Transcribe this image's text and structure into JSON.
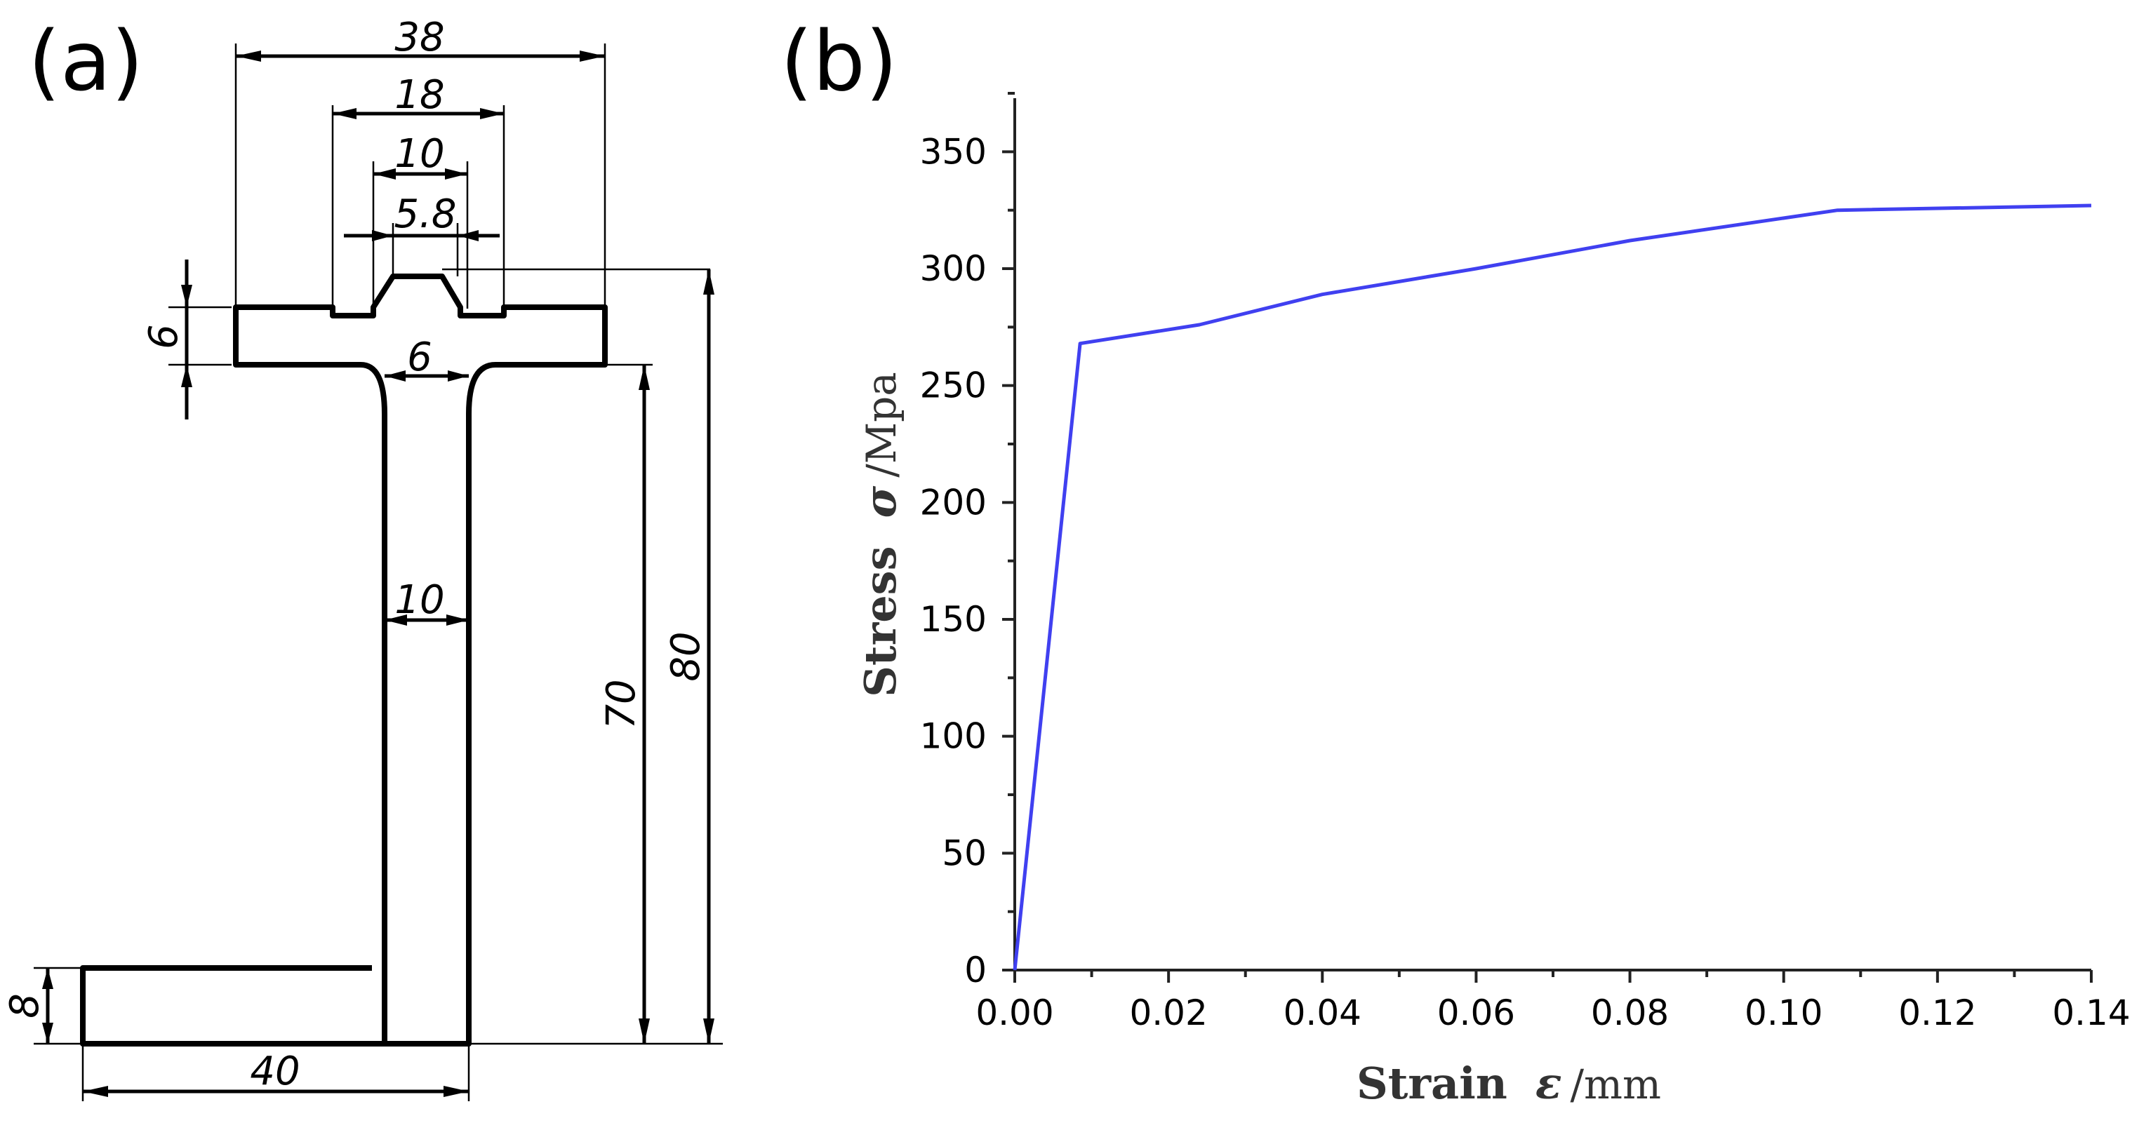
{
  "panel_a": {
    "label": "(a)",
    "dimensions": {
      "top_width": "38",
      "mid_width": "18",
      "slot_width": "10",
      "tip_width": "5.8",
      "flange_thickness": "6",
      "neck_width": "6",
      "web_width": "10",
      "lower_height": "70",
      "total_height": "80",
      "foot_thickness": "8",
      "foot_length": "40"
    }
  },
  "panel_b": {
    "label": "(b)",
    "y_title_word": "Stress",
    "y_title_symbol": "σ",
    "y_title_unit": "/Mpa",
    "x_title_word": "Strain",
    "x_title_symbol": "ε",
    "x_title_unit": "/mm"
  },
  "chart_data": {
    "type": "line",
    "series": [
      {
        "x": [
          0,
          0.0085,
          0.024,
          0.04,
          0.06,
          0.08,
          0.107,
          0.14
        ],
        "y": [
          0,
          268,
          276,
          289,
          300,
          312,
          325,
          327
        ]
      }
    ],
    "xlim": [
      0,
      0.14
    ],
    "ylim": [
      0,
      375
    ],
    "x_ticks": [
      0,
      0.02,
      0.04,
      0.06,
      0.08,
      0.1,
      0.12,
      0.14
    ],
    "x_tick_labels": [
      "0.00",
      "0.02",
      "0.04",
      "0.06",
      "0.08",
      "0.10",
      "0.12",
      "0.14"
    ],
    "y_ticks": [
      0,
      50,
      100,
      150,
      200,
      250,
      300,
      350
    ],
    "y_tick_labels": [
      "0",
      "50",
      "100",
      "150",
      "200",
      "250",
      "300",
      "350"
    ],
    "grid": false,
    "line_color": "#4040f0"
  }
}
